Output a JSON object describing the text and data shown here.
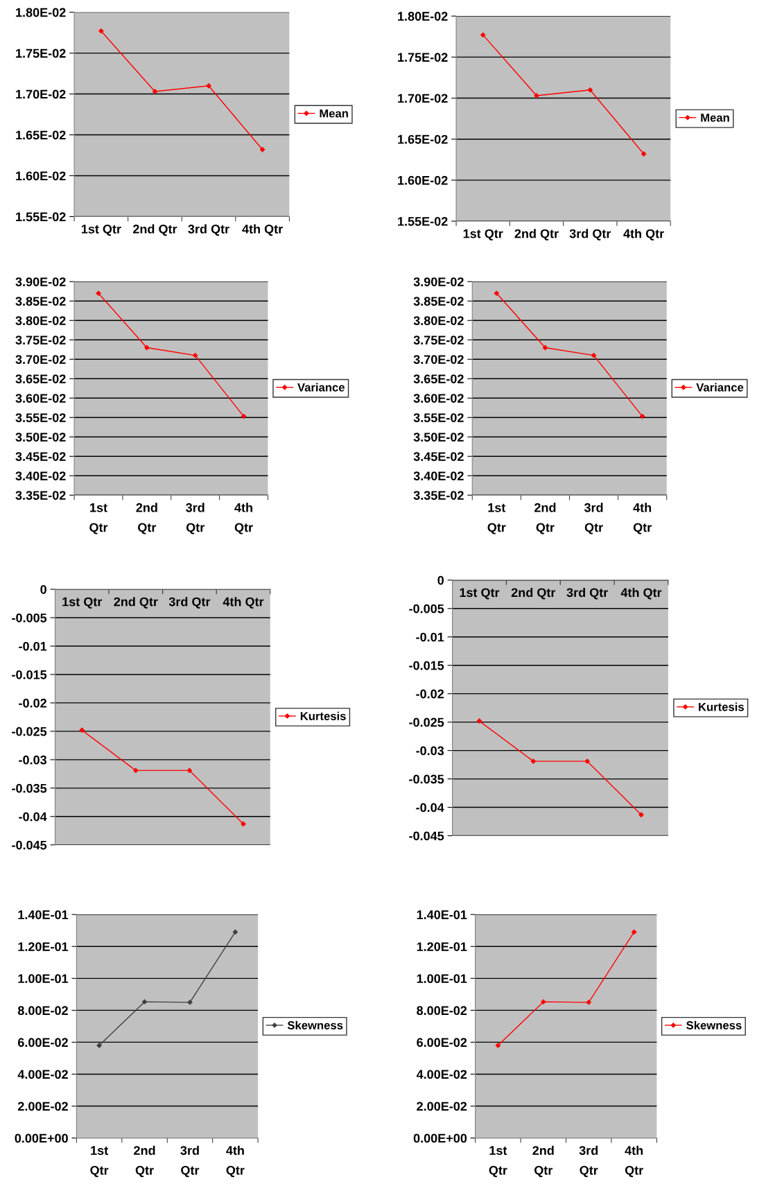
{
  "chart_data": [
    {
      "type": "line",
      "categories": [
        "1st Qtr",
        "2nd Qtr",
        "3rd Qtr",
        "4th Qtr"
      ],
      "series": [
        {
          "name": "Mean",
          "color": "#ff0000",
          "values": [
            0.01777,
            0.01703,
            0.0171,
            0.01632
          ]
        }
      ],
      "ylim": [
        0.0155,
        0.018
      ],
      "yticks": [
        {
          "value": 0.0155,
          "label": "1.55E-02"
        },
        {
          "value": 0.016,
          "label": "1.60E-02"
        },
        {
          "value": 0.0165,
          "label": "1.65E-02"
        },
        {
          "value": 0.017,
          "label": "1.70E-02"
        },
        {
          "value": 0.0175,
          "label": "1.75E-02"
        },
        {
          "value": 0.018,
          "label": "1.80E-02"
        }
      ],
      "grid": "y",
      "legend": "right",
      "marker": "diamond",
      "line_style": "solid"
    },
    {
      "type": "line",
      "categories": [
        "1st Qtr",
        "2nd Qtr",
        "3rd Qtr",
        "4th Qtr"
      ],
      "series": [
        {
          "name": "Mean",
          "color": "#ff0000",
          "values": [
            0.01777,
            0.01703,
            0.0171,
            0.01632
          ]
        }
      ],
      "ylim": [
        0.0155,
        0.018
      ],
      "yticks": [
        {
          "value": 0.0155,
          "label": "1.55E-02"
        },
        {
          "value": 0.016,
          "label": "1.60E-02"
        },
        {
          "value": 0.0165,
          "label": "1.65E-02"
        },
        {
          "value": 0.017,
          "label": "1.70E-02"
        },
        {
          "value": 0.0175,
          "label": "1.75E-02"
        },
        {
          "value": 0.018,
          "label": "1.80E-02"
        }
      ],
      "grid": "y",
      "legend": "right",
      "marker": "diamond",
      "line_style": "solid"
    },
    {
      "type": "line",
      "categories": [
        "1st Qtr",
        "2nd Qtr",
        "3rd Qtr",
        "4th Qtr"
      ],
      "series": [
        {
          "name": "Variance",
          "color": "#ff0000",
          "values": [
            0.0387,
            0.0373,
            0.0371,
            0.03553
          ]
        }
      ],
      "ylim": [
        0.0335,
        0.039
      ],
      "yticks": [
        {
          "value": 0.0335,
          "label": "3.35E-02"
        },
        {
          "value": 0.034,
          "label": "3.40E-02"
        },
        {
          "value": 0.0345,
          "label": "3.45E-02"
        },
        {
          "value": 0.035,
          "label": "3.50E-02"
        },
        {
          "value": 0.0355,
          "label": "3.55E-02"
        },
        {
          "value": 0.036,
          "label": "3.60E-02"
        },
        {
          "value": 0.0365,
          "label": "3.65E-02"
        },
        {
          "value": 0.037,
          "label": "3.70E-02"
        },
        {
          "value": 0.0375,
          "label": "3.75E-02"
        },
        {
          "value": 0.038,
          "label": "3.80E-02"
        },
        {
          "value": 0.0385,
          "label": "3.85E-02"
        },
        {
          "value": 0.039,
          "label": "3.90E-02"
        }
      ],
      "grid": "y",
      "legend": "right",
      "marker": "diamond",
      "line_style": "solid"
    },
    {
      "type": "line",
      "categories": [
        "1st Qtr",
        "2nd Qtr",
        "3rd Qtr",
        "4th Qtr"
      ],
      "series": [
        {
          "name": "Variance",
          "color": "#ff0000",
          "values": [
            0.0387,
            0.0373,
            0.0371,
            0.03553
          ]
        }
      ],
      "ylim": [
        0.0335,
        0.039
      ],
      "yticks": [
        {
          "value": 0.0335,
          "label": "3.35E-02"
        },
        {
          "value": 0.034,
          "label": "3.40E-02"
        },
        {
          "value": 0.0345,
          "label": "3.45E-02"
        },
        {
          "value": 0.035,
          "label": "3.50E-02"
        },
        {
          "value": 0.0355,
          "label": "3.55E-02"
        },
        {
          "value": 0.036,
          "label": "3.60E-02"
        },
        {
          "value": 0.0365,
          "label": "3.65E-02"
        },
        {
          "value": 0.037,
          "label": "3.70E-02"
        },
        {
          "value": 0.0375,
          "label": "3.75E-02"
        },
        {
          "value": 0.038,
          "label": "3.80E-02"
        },
        {
          "value": 0.0385,
          "label": "3.85E-02"
        },
        {
          "value": 0.039,
          "label": "3.90E-02"
        }
      ],
      "grid": "y",
      "legend": "right",
      "marker": "diamond",
      "line_style": "solid"
    },
    {
      "type": "line",
      "categories": [
        "1st Qtr",
        "2nd Qtr",
        "3rd Qtr",
        "4th Qtr"
      ],
      "series": [
        {
          "name": "Kurtesis",
          "color": "#ff0000",
          "values": [
            -0.0248,
            -0.0319,
            -0.0319,
            -0.0413
          ]
        }
      ],
      "ylim": [
        -0.045,
        0
      ],
      "yticks": [
        -0.045,
        -0.04,
        -0.035,
        -0.03,
        -0.025,
        -0.02,
        -0.015,
        -0.01,
        -0.005,
        0
      ],
      "grid": "y",
      "legend": "right",
      "marker": "diamond",
      "line_style": "solid"
    },
    {
      "type": "line",
      "categories": [
        "1st Qtr",
        "2nd Qtr",
        "3rd Qtr",
        "4th Qtr"
      ],
      "series": [
        {
          "name": "Kurtesis",
          "color": "#ff0000",
          "values": [
            -0.0248,
            -0.0319,
            -0.0319,
            -0.0413
          ]
        }
      ],
      "ylim": [
        -0.045,
        0
      ],
      "yticks": [
        -0.045,
        -0.04,
        -0.035,
        -0.03,
        -0.025,
        -0.02,
        -0.015,
        -0.01,
        -0.005,
        0
      ],
      "grid": "y",
      "legend": "right",
      "marker": "diamond",
      "line_style": "solid"
    },
    {
      "type": "line",
      "categories": [
        "1st Qtr",
        "2nd Qtr",
        "3rd Qtr",
        "4th Qtr"
      ],
      "series": [
        {
          "name": "Skewness",
          "color": "#404040",
          "values": [
            0.058,
            0.0853,
            0.085,
            0.129
          ]
        }
      ],
      "ylim": [
        0,
        0.14
      ],
      "yticks": [
        {
          "value": 0,
          "label": "0.00E+00"
        },
        {
          "value": 0.02,
          "label": "2.00E-02"
        },
        {
          "value": 0.04,
          "label": "4.00E-02"
        },
        {
          "value": 0.06,
          "label": "6.00E-02"
        },
        {
          "value": 0.08,
          "label": "8.00E-02"
        },
        {
          "value": 0.1,
          "label": "1.00E-01"
        },
        {
          "value": 0.12,
          "label": "1.20E-01"
        },
        {
          "value": 0.14,
          "label": "1.40E-01"
        }
      ],
      "grid": "y",
      "legend": "right",
      "marker": "diamond",
      "line_style": "solid"
    },
    {
      "type": "line",
      "categories": [
        "1st Qtr",
        "2nd Qtr",
        "3rd Qtr",
        "4th Qtr"
      ],
      "series": [
        {
          "name": "Skewness",
          "color": "#ff0000",
          "values": [
            0.058,
            0.0853,
            0.085,
            0.129
          ]
        }
      ],
      "ylim": [
        0,
        0.14
      ],
      "yticks": [
        {
          "value": 0,
          "label": "0.00E+00"
        },
        {
          "value": 0.02,
          "label": "2.00E-02"
        },
        {
          "value": 0.04,
          "label": "4.00E-02"
        },
        {
          "value": 0.06,
          "label": "6.00E-02"
        },
        {
          "value": 0.08,
          "label": "8.00E-02"
        },
        {
          "value": 0.1,
          "label": "1.00E-01"
        },
        {
          "value": 0.12,
          "label": "1.20E-01"
        },
        {
          "value": 0.14,
          "label": "1.40E-01"
        }
      ],
      "grid": "y",
      "legend": "right",
      "marker": "diamond",
      "line_style": "solid"
    }
  ]
}
